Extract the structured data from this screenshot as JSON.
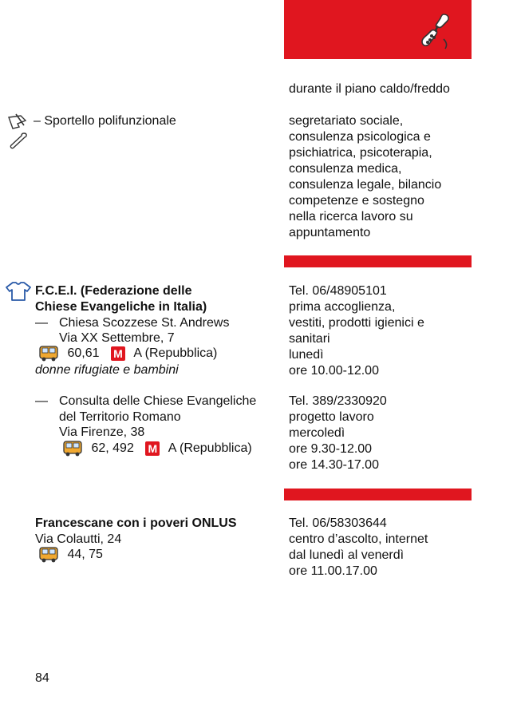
{
  "colors": {
    "accent": "#e0161f"
  },
  "icons": {
    "phone": "phone-icon",
    "services": "services-icon",
    "clothes": "tshirt-icon",
    "bus": "bus-icon",
    "metro": "metro-icon"
  },
  "top_note": "durante il piano caldo/freddo",
  "sportello": {
    "title": "– Sportello polifunzionale",
    "services": [
      "segretariato sociale,",
      "consulenza psicologica e",
      "psichiatrica, psicoterapia,",
      "consulenza medica,",
      "consulenza legale, bilancio",
      "competenze e sostegno",
      "nella ricerca lavoro su",
      "appuntamento"
    ]
  },
  "fcei": {
    "title_lines": [
      "F.C.E.I. (Federazione delle",
      "Chiese Evangeliche in Italia)"
    ],
    "entries": [
      {
        "dash": "—",
        "name_lines": [
          "Chiesa Scozzese St. Andrews"
        ],
        "address": "Via XX Settembre, 7",
        "bus": "60,61",
        "metro_letter": "M",
        "metro": "A (Repubblica)",
        "note": "donne rifugiate e bambini",
        "right": [
          "Tel. 06/48905101",
          "prima accoglienza,",
          "vestiti, prodotti igienici e",
          "sanitari",
          "lunedì",
          "ore 10.00-12.00"
        ]
      },
      {
        "dash": "—",
        "name_lines": [
          "Consulta delle Chiese Evangeliche",
          "del Territorio Romano"
        ],
        "address": "Via Firenze, 38",
        "bus": "62, 492",
        "metro_letter": "M",
        "metro": "A (Repubblica)",
        "right": [
          "Tel. 389/2330920",
          "progetto lavoro",
          "mercoledì",
          "ore 9.30-12.00",
          "ore 14.30-17.00"
        ]
      }
    ]
  },
  "francescane": {
    "title": "Francescane con i poveri ONLUS",
    "address": "Via Colautti, 24",
    "bus": "44, 75",
    "right": [
      "Tel. 06/58303644",
      "centro d’ascolto, internet",
      "dal lunedì al venerdì",
      "ore 11.00.17.00"
    ]
  },
  "page_number": "84"
}
